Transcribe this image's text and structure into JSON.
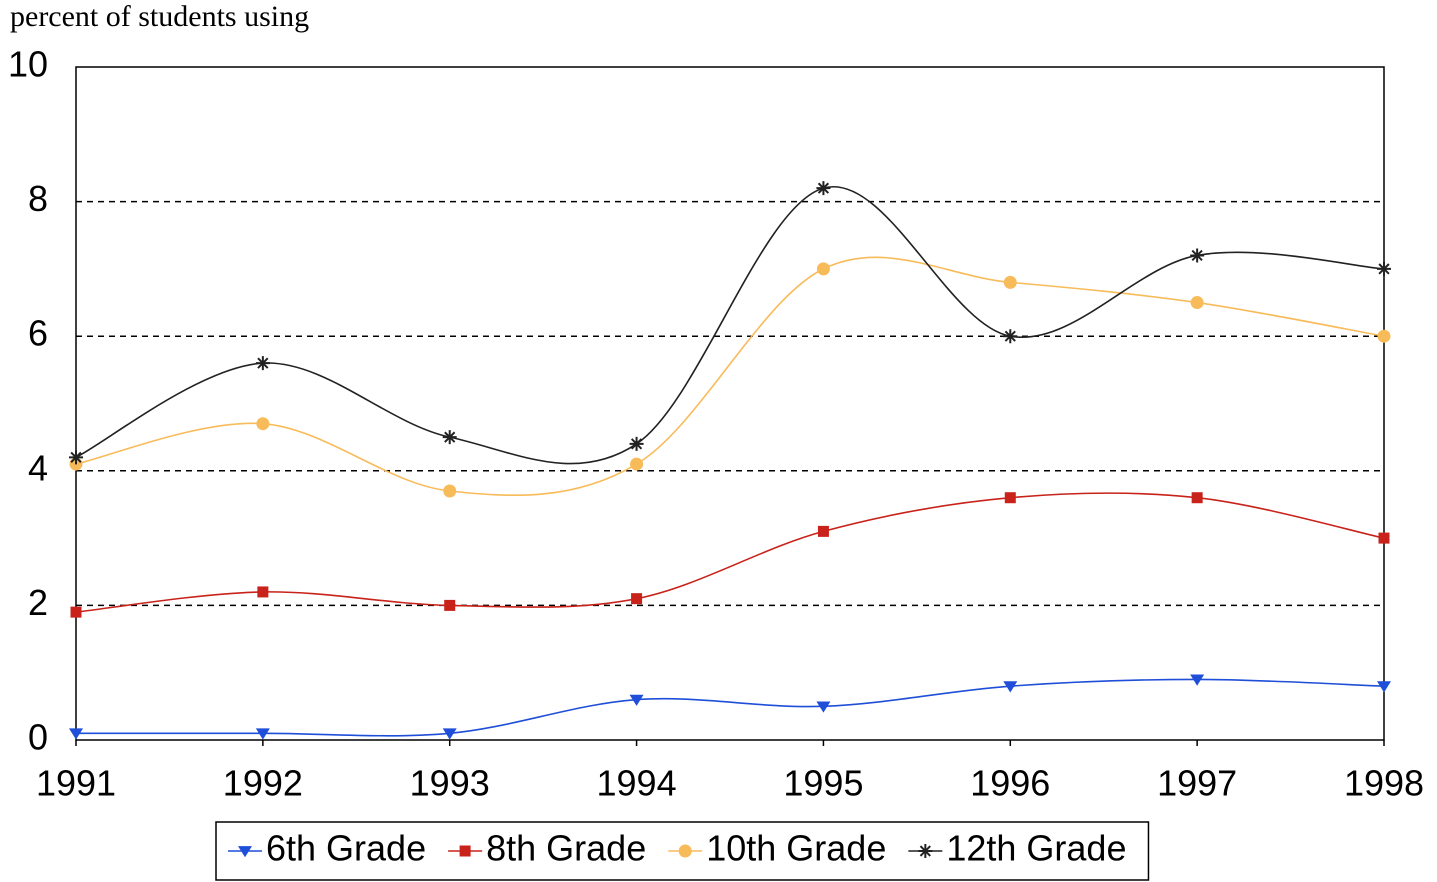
{
  "chart_data": {
    "type": "line",
    "y_label": "percent of students using",
    "x": [
      1991,
      1992,
      1993,
      1994,
      1995,
      1996,
      1997,
      1998
    ],
    "xlim": [
      1991,
      1998
    ],
    "xticks": [
      1991,
      1992,
      1993,
      1994,
      1995,
      1996,
      1997,
      1998
    ],
    "ylim": [
      0,
      10
    ],
    "yticks": [
      0,
      2,
      4,
      6,
      8,
      10
    ],
    "grid": true,
    "smooth": true,
    "legend": "bottom",
    "series": [
      {
        "name": "6th Grade",
        "color": "#1f4fd8",
        "marker": "triangle-down",
        "values": [
          0.1,
          0.1,
          0.1,
          0.6,
          0.5,
          0.8,
          0.9,
          0.8
        ]
      },
      {
        "name": "8th Grade",
        "color": "#c8221a",
        "marker": "square",
        "values": [
          1.9,
          2.2,
          2.0,
          2.1,
          3.1,
          3.6,
          3.6,
          3.0
        ]
      },
      {
        "name": "10th Grade",
        "color": "#f8bb5a",
        "marker": "circle",
        "values": [
          4.1,
          4.7,
          3.7,
          4.1,
          7.0,
          6.8,
          6.5,
          6.0
        ]
      },
      {
        "name": "12th Grade",
        "color": "#222222",
        "marker": "star",
        "values": [
          4.2,
          5.6,
          4.5,
          4.4,
          8.2,
          6.0,
          7.2,
          7.0
        ]
      }
    ]
  }
}
